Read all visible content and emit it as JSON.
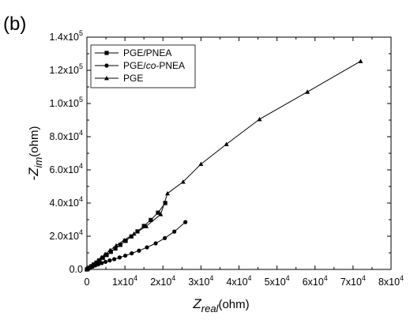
{
  "panel_label": "(b)",
  "chart_data": {
    "type": "line",
    "xlabel": {
      "main": "Z",
      "sub": "real",
      "unit": "(ohm)"
    },
    "ylabel": {
      "prefix": "-Z",
      "sub": "im",
      "unit": "(ohm)"
    },
    "xlim": [
      0,
      80000
    ],
    "ylim": [
      0,
      140000
    ],
    "x_ticks": [
      {
        "value": 0,
        "base": "0",
        "exp": ""
      },
      {
        "value": 10000,
        "base": "1x10",
        "exp": "4"
      },
      {
        "value": 20000,
        "base": "2x10",
        "exp": "4"
      },
      {
        "value": 30000,
        "base": "3x10",
        "exp": "4"
      },
      {
        "value": 40000,
        "base": "4x10",
        "exp": "4"
      },
      {
        "value": 50000,
        "base": "5x10",
        "exp": "4"
      },
      {
        "value": 60000,
        "base": "6x10",
        "exp": "4"
      },
      {
        "value": 70000,
        "base": "7x10",
        "exp": "4"
      },
      {
        "value": 80000,
        "base": "8x10",
        "exp": "4"
      }
    ],
    "y_ticks": [
      {
        "value": 0,
        "base": "0.0",
        "exp": ""
      },
      {
        "value": 20000,
        "base": "2.0x10",
        "exp": "4"
      },
      {
        "value": 40000,
        "base": "4.0x10",
        "exp": "4"
      },
      {
        "value": 60000,
        "base": "6.0x10",
        "exp": "4"
      },
      {
        "value": 80000,
        "base": "8.0x10",
        "exp": "4"
      },
      {
        "value": 100000,
        "base": "1.0x10",
        "exp": "5"
      },
      {
        "value": 120000,
        "base": "1.2x10",
        "exp": "5"
      },
      {
        "value": 140000,
        "base": "1.4x10",
        "exp": "5"
      }
    ],
    "grid": false,
    "legend_position": "top-left",
    "series": [
      {
        "name": "PGE/PNEA",
        "name_parts": [
          {
            "text": "PGE/PNEA",
            "italic": false
          }
        ],
        "marker": "square",
        "color": "#000000",
        "x": [
          0,
          300,
          700,
          1200,
          1800,
          2500,
          3300,
          4200,
          5200,
          6300,
          7500,
          8800,
          10200,
          11700,
          13300,
          15000,
          16800,
          18700,
          20600
        ],
        "y": [
          0,
          500,
          1100,
          1900,
          2900,
          4000,
          5400,
          7000,
          8700,
          10600,
          12600,
          14800,
          17200,
          19900,
          22900,
          26200,
          29800,
          34200,
          40000
        ]
      },
      {
        "name": "PGE/co-PNEA",
        "name_parts": [
          {
            "text": "PGE/",
            "italic": false
          },
          {
            "text": "co",
            "italic": true
          },
          {
            "text": "-PNEA",
            "italic": false
          }
        ],
        "marker": "circle",
        "color": "#000000",
        "x": [
          0,
          400,
          900,
          1500,
          2200,
          3000,
          3900,
          4900,
          6000,
          7200,
          8600,
          10100,
          11800,
          13700,
          15800,
          18100,
          20500,
          23000,
          25900
        ],
        "y": [
          0,
          500,
          1100,
          1700,
          2400,
          3100,
          3800,
          4600,
          5400,
          6200,
          7200,
          8300,
          9700,
          11300,
          13300,
          15700,
          18900,
          22800,
          28500
        ]
      },
      {
        "name": "PGE",
        "name_parts": [
          {
            "text": "PGE",
            "italic": false
          }
        ],
        "marker": "triangle",
        "color": "#000000",
        "x": [
          0,
          300,
          700,
          1100,
          1600,
          2200,
          2900,
          3800,
          4800,
          6100,
          7700,
          9800,
          12400,
          15600,
          19400,
          21200,
          25300,
          30000,
          36700,
          45400,
          58000,
          72000
        ],
        "y": [
          0,
          600,
          1300,
          2100,
          3100,
          4200,
          5600,
          7300,
          9300,
          11600,
          14400,
          17700,
          21500,
          26000,
          33200,
          45800,
          52800,
          63500,
          75500,
          90500,
          107000,
          125500
        ]
      }
    ]
  }
}
